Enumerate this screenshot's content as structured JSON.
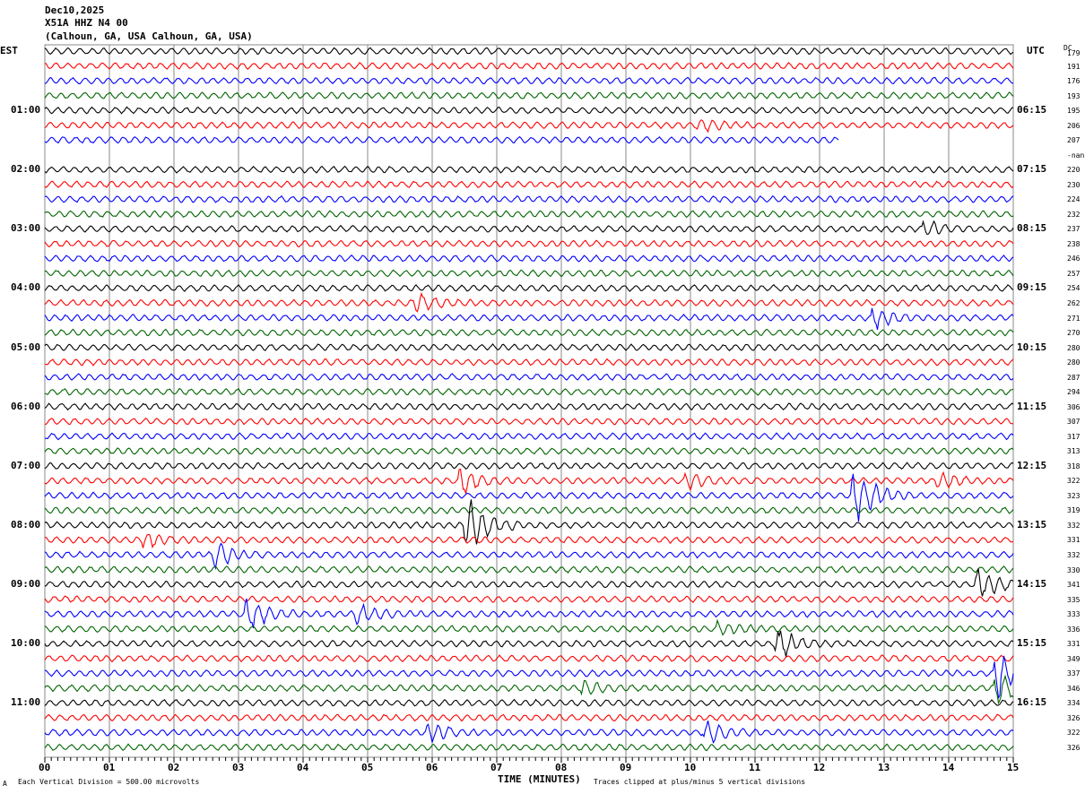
{
  "header": {
    "date": "Dec10,2025",
    "station": "X51A HHZ N4 00",
    "location": "(Calhoun, GA, USA Calhoun, GA, USA)"
  },
  "left_tz": "EST",
  "right_tz": "UTC",
  "dc_label": "DC",
  "footer": {
    "scale": "Each Vertical Division =  500.00 microvolts",
    "xlabel": "TIME (MINUTES)",
    "clip": "Traces clipped at plus/minus 5 vertical divisions",
    "corner": "A"
  },
  "chart_data": {
    "type": "line",
    "title": "X51A HHZ N4 00 helicorder",
    "xlabel": "TIME (MINUTES)",
    "xlim": [
      0,
      15
    ],
    "x_ticks": [
      "00",
      "01",
      "02",
      "03",
      "04",
      "05",
      "06",
      "07",
      "08",
      "09",
      "10",
      "11",
      "12",
      "13",
      "14",
      "15"
    ],
    "colors": [
      "#000000",
      "#ff0000",
      "#0000ff",
      "#006400"
    ],
    "left_labels": [
      "01:00",
      "02:00",
      "03:00",
      "04:00",
      "05:00",
      "06:00",
      "07:00",
      "08:00",
      "09:00",
      "10:00",
      "11:00"
    ],
    "right_labels": [
      "06:15",
      "07:15",
      "08:15",
      "09:15",
      "10:15",
      "11:15",
      "12:15",
      "13:15",
      "14:15",
      "15:15",
      "16:15"
    ],
    "dc_offsets": [
      "179",
      "191",
      "176",
      "193",
      "195",
      "206",
      "207",
      "-nan",
      "220",
      "230",
      "224",
      "232",
      "237",
      "238",
      "246",
      "257",
      "254",
      "262",
      "271",
      "270",
      "280",
      "280",
      "287",
      "294",
      "306",
      "307",
      "317",
      "313",
      "318",
      "322",
      "323",
      "319",
      "332",
      "331",
      "332",
      "330",
      "341",
      "335",
      "333",
      "336",
      "331",
      "349",
      "337",
      "346",
      "334",
      "326",
      "322",
      "326"
    ],
    "missing_rows": [
      7
    ],
    "truncated": [
      {
        "row": 6,
        "end_minute": 12.3
      }
    ],
    "events": [
      {
        "row": 5,
        "minute": 10.2,
        "amp": 4
      },
      {
        "row": 12,
        "minute": 13.7,
        "amp": 6
      },
      {
        "row": 17,
        "minute": 5.8,
        "amp": 7
      },
      {
        "row": 18,
        "minute": 12.9,
        "amp": 7
      },
      {
        "row": 29,
        "minute": 6.5,
        "amp": 10
      },
      {
        "row": 29,
        "minute": 10.0,
        "amp": 6
      },
      {
        "row": 29,
        "minute": 13.9,
        "amp": 6
      },
      {
        "row": 30,
        "minute": 12.6,
        "amp": 22
      },
      {
        "row": 32,
        "minute": 6.6,
        "amp": 22
      },
      {
        "row": 33,
        "minute": 1.6,
        "amp": 6
      },
      {
        "row": 34,
        "minute": 2.7,
        "amp": 9
      },
      {
        "row": 36,
        "minute": 14.5,
        "amp": 11
      },
      {
        "row": 38,
        "minute": 3.2,
        "amp": 13
      },
      {
        "row": 38,
        "minute": 4.9,
        "amp": 7
      },
      {
        "row": 39,
        "minute": 10.5,
        "amp": 5
      },
      {
        "row": 40,
        "minute": 11.4,
        "amp": 11
      },
      {
        "row": 42,
        "minute": 14.8,
        "amp": 18
      },
      {
        "row": 43,
        "minute": 14.8,
        "amp": 16
      },
      {
        "row": 43,
        "minute": 8.4,
        "amp": 5
      },
      {
        "row": 46,
        "minute": 6.0,
        "amp": 7
      },
      {
        "row": 46,
        "minute": 10.3,
        "amp": 9
      }
    ]
  }
}
